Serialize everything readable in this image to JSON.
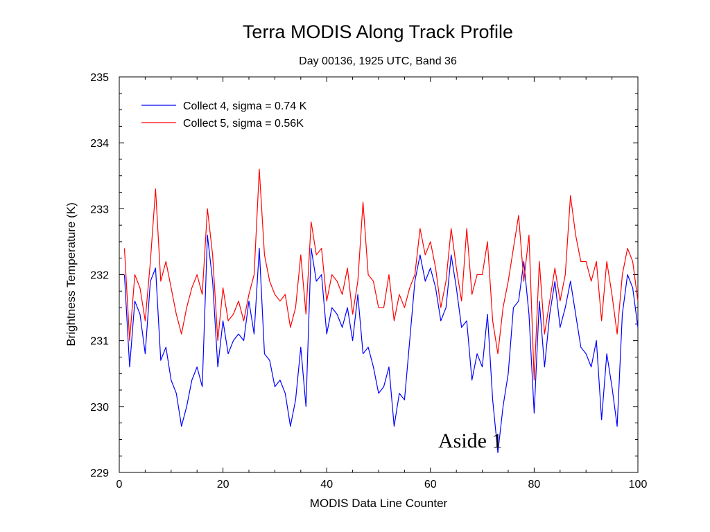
{
  "chart_data": {
    "type": "line",
    "title": "Terra MODIS Along Track Profile",
    "subtitle": "Day 00136, 1925 UTC, Band 36",
    "xlabel": "MODIS Data Line Counter",
    "ylabel": "Brightness Temperature (K)",
    "xlim": [
      0,
      100
    ],
    "ylim": [
      229,
      235
    ],
    "xticks": [
      0,
      20,
      40,
      60,
      80,
      100
    ],
    "yticks": [
      229,
      230,
      231,
      232,
      233,
      234,
      235
    ],
    "legend_position": "top-left",
    "grid": false,
    "x": [
      1,
      2,
      3,
      4,
      5,
      6,
      7,
      8,
      9,
      10,
      11,
      12,
      13,
      14,
      15,
      16,
      17,
      18,
      19,
      20,
      21,
      22,
      23,
      24,
      25,
      26,
      27,
      28,
      29,
      30,
      31,
      32,
      33,
      34,
      35,
      36,
      37,
      38,
      39,
      40,
      41,
      42,
      43,
      44,
      45,
      46,
      47,
      48,
      49,
      50,
      51,
      52,
      53,
      54,
      55,
      56,
      57,
      58,
      59,
      60,
      61,
      62,
      63,
      64,
      65,
      66,
      67,
      68,
      69,
      70,
      71,
      72,
      73,
      74,
      75,
      76,
      77,
      78,
      79,
      80,
      81,
      82,
      83,
      84,
      85,
      86,
      87,
      88,
      89,
      90,
      91,
      92,
      93,
      94,
      95,
      96,
      97,
      98,
      99,
      100
    ],
    "series": [
      {
        "name": "Collect 4, sigma = 0.74 K",
        "color": "#0000ff",
        "values": [
          232.0,
          230.6,
          231.6,
          231.4,
          230.8,
          231.9,
          232.1,
          230.7,
          230.9,
          230.4,
          230.2,
          229.7,
          230.0,
          230.4,
          230.6,
          230.3,
          232.6,
          231.9,
          230.6,
          231.3,
          230.8,
          231.0,
          231.1,
          231.0,
          231.6,
          231.1,
          232.4,
          230.8,
          230.7,
          230.3,
          230.4,
          230.2,
          229.7,
          230.1,
          230.9,
          230.0,
          232.4,
          231.9,
          232.0,
          231.1,
          231.5,
          231.4,
          231.2,
          231.5,
          231.0,
          231.7,
          230.8,
          230.9,
          230.6,
          230.2,
          230.3,
          230.6,
          229.7,
          230.2,
          230.1,
          231.0,
          231.9,
          232.3,
          231.9,
          232.1,
          231.8,
          231.3,
          231.5,
          232.3,
          231.8,
          231.2,
          231.3,
          230.4,
          230.8,
          230.6,
          231.4,
          230.1,
          229.3,
          230.0,
          230.5,
          231.5,
          231.6,
          232.2,
          231.4,
          229.9,
          231.6,
          230.6,
          231.4,
          231.9,
          231.2,
          231.5,
          231.9,
          231.4,
          230.9,
          230.8,
          230.6,
          231.0,
          229.8,
          230.8,
          230.3,
          229.7,
          231.4,
          232.0,
          231.8,
          231.2
        ]
      },
      {
        "name": "Collect 5, sigma = 0.56K",
        "color": "#ff0000",
        "values": [
          232.4,
          231.0,
          232.0,
          231.8,
          231.3,
          232.2,
          233.3,
          231.9,
          232.2,
          231.8,
          231.4,
          231.1,
          231.5,
          231.8,
          232.0,
          231.7,
          233.0,
          232.3,
          231.0,
          231.8,
          231.3,
          231.4,
          231.6,
          231.3,
          231.7,
          232.0,
          233.6,
          232.3,
          231.9,
          231.7,
          231.6,
          231.7,
          231.2,
          231.5,
          232.3,
          231.4,
          232.8,
          232.3,
          232.4,
          231.6,
          232.0,
          231.9,
          231.7,
          232.1,
          231.4,
          231.9,
          233.1,
          232.0,
          231.9,
          231.5,
          231.5,
          232.0,
          231.3,
          231.7,
          231.5,
          231.8,
          232.0,
          232.7,
          232.3,
          232.5,
          232.1,
          231.5,
          231.9,
          232.7,
          232.1,
          231.6,
          232.7,
          231.7,
          232.0,
          232.0,
          232.5,
          231.3,
          230.8,
          231.5,
          231.9,
          232.4,
          232.9,
          231.9,
          232.6,
          230.4,
          232.2,
          231.1,
          231.6,
          232.1,
          231.6,
          232.0,
          233.2,
          232.6,
          232.2,
          232.2,
          231.9,
          232.2,
          231.3,
          232.2,
          231.7,
          231.1,
          232.0,
          232.4,
          232.2,
          231.6
        ]
      }
    ],
    "annotations": [
      {
        "text": "Aside 1"
      }
    ]
  }
}
